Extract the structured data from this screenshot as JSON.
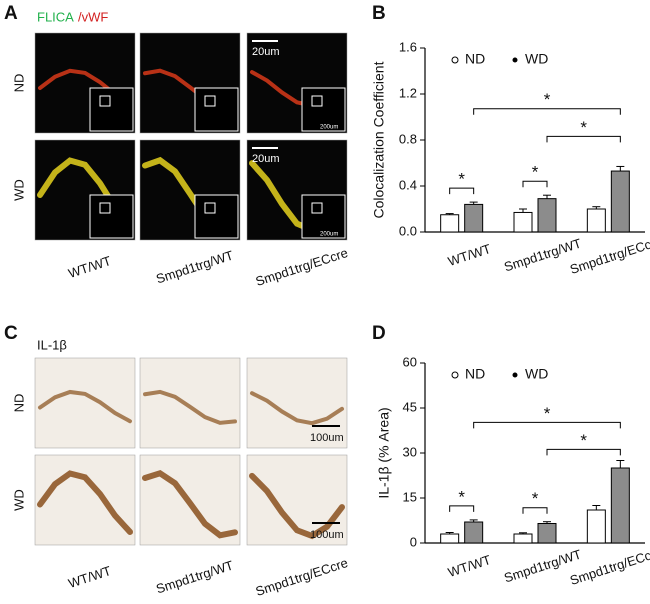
{
  "panel_labels": [
    "A",
    "B",
    "C",
    "D"
  ],
  "panel_a": {
    "stain": [
      "FLICA",
      "/vWF"
    ],
    "rows": [
      "ND",
      "WD"
    ],
    "scale_bars": [
      "20um",
      "20um"
    ],
    "inset_scale_bars": [
      "200um",
      "200um"
    ],
    "columns": [
      "WT/WT",
      "Smpd1trg/WT",
      "Smpd1trg/ECcre"
    ]
  },
  "panel_c": {
    "stain": "IL-1β",
    "rows": [
      "ND",
      "WD"
    ],
    "scale_bars": [
      "100um",
      "100um"
    ],
    "columns": [
      "WT/WT",
      "Smpd1trg/WT",
      "Smpd1trg/ECcre"
    ]
  },
  "chart_data": [
    {
      "type": "bar",
      "ylabel": "Colocalization Coefficient",
      "categories": [
        "WT/WT",
        "Smpd1trg/WT",
        "Smpd1trg/ECcre"
      ],
      "series": [
        {
          "name": "ND",
          "color": "#ffffff",
          "values": [
            0.15,
            0.17,
            0.2
          ],
          "errors": [
            0.01,
            0.03,
            0.02
          ]
        },
        {
          "name": "WD",
          "color": "#8c8c8c",
          "values": [
            0.24,
            0.29,
            0.53
          ],
          "errors": [
            0.02,
            0.03,
            0.04
          ]
        }
      ],
      "ylim": [
        0,
        1.6
      ],
      "yticks": [
        {
          "value": 0,
          "label": "0.0"
        },
        0.4,
        0.8,
        1.2,
        1.6
      ],
      "annotations": [
        "*",
        "*",
        "*",
        "*"
      ]
    },
    {
      "type": "bar",
      "ylabel": "IL-1β (% Area)",
      "categories": [
        "WT/WT",
        "Smpd1trg/WT",
        "Smpd1trg/ECcre"
      ],
      "series": [
        {
          "name": "ND",
          "color": "#ffffff",
          "values": [
            3,
            3,
            11
          ],
          "errors": [
            0.5,
            0.4,
            1.5
          ]
        },
        {
          "name": "WD",
          "color": "#8c8c8c",
          "values": [
            7,
            6.5,
            25
          ],
          "errors": [
            0.7,
            0.6,
            2.5
          ]
        }
      ],
      "ylim": [
        0,
        60
      ],
      "yticks": [
        0,
        15,
        30,
        45,
        60
      ],
      "annotations": [
        "*",
        "*",
        "*",
        "*"
      ]
    }
  ]
}
